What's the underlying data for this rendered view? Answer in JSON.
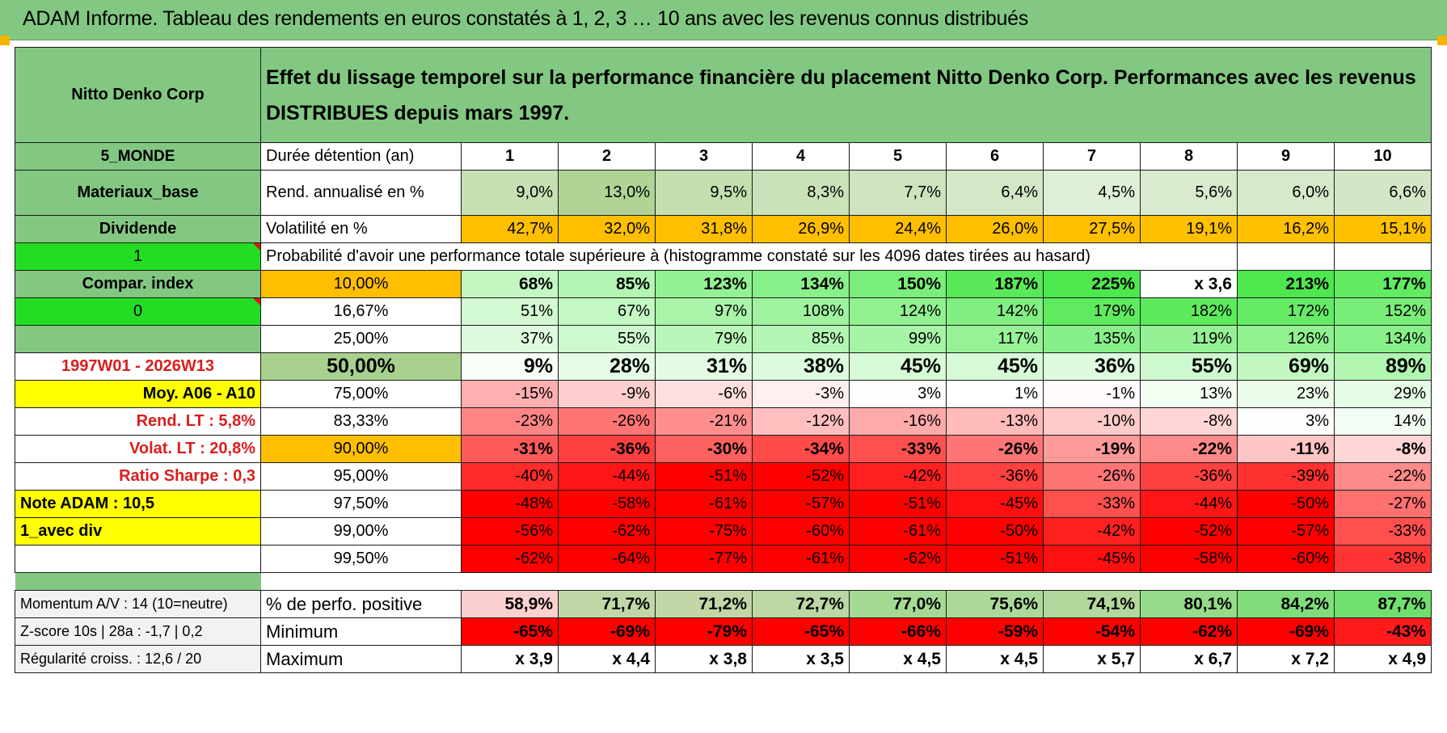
{
  "title": "ADAM Informe. Tableau des rendements en euros constatés à 1, 2, 3 … 10 ans avec les revenus connus distribués",
  "header": {
    "company": "Nitto Denko Corp",
    "description": "Effet du lissage temporel sur la performance financière du placement Nitto Denko Corp. Performances avec les revenus DISTRIBUES depuis mars 1997."
  },
  "rows": {
    "durations": {
      "label": "5_MONDE",
      "desc": "Durée détention (an)",
      "values": [
        "1",
        "2",
        "3",
        "4",
        "5",
        "6",
        "7",
        "8",
        "9",
        "10"
      ]
    },
    "returns": {
      "label": "Materiaux_base",
      "desc": "Rend. annualisé en %",
      "values": [
        "9,0%",
        "13,0%",
        "9,5%",
        "8,3%",
        "7,7%",
        "6,4%",
        "4,5%",
        "5,6%",
        "6,0%",
        "6,6%"
      ]
    },
    "volatility": {
      "label": "Dividende",
      "desc": "Volatilité en %",
      "values": [
        "42,7%",
        "32,0%",
        "31,8%",
        "26,9%",
        "24,4%",
        "26,0%",
        "27,5%",
        "19,1%",
        "16,2%",
        "15,1%"
      ]
    },
    "prob_header": {
      "label": "1",
      "text": "Probabilité d'avoir une performance totale supérieure à (histogramme constaté sur les 4096 dates tirées au hasard)"
    }
  },
  "quantiles": [
    {
      "label": "Compar. index",
      "q": "10,00%",
      "values": [
        "68%",
        "85%",
        "123%",
        "134%",
        "150%",
        "187%",
        "225%",
        "x 3,6",
        "213%",
        "177%"
      ]
    },
    {
      "label": "0",
      "q": "16,67%",
      "values": [
        "51%",
        "67%",
        "97%",
        "108%",
        "124%",
        "142%",
        "179%",
        "182%",
        "172%",
        "152%"
      ]
    },
    {
      "label": "",
      "q": "25,00%",
      "values": [
        "37%",
        "55%",
        "79%",
        "85%",
        "99%",
        "117%",
        "135%",
        "119%",
        "126%",
        "134%"
      ]
    },
    {
      "label": "1997W01 - 2026W13",
      "q": "50,00%",
      "values": [
        "9%",
        "28%",
        "31%",
        "38%",
        "45%",
        "45%",
        "36%",
        "55%",
        "69%",
        "89%"
      ]
    },
    {
      "label": "Moy. A06 - A10",
      "q": "75,00%",
      "values": [
        "-15%",
        "-9%",
        "-6%",
        "-3%",
        "3%",
        "1%",
        "-1%",
        "13%",
        "23%",
        "29%"
      ]
    },
    {
      "label": "Rend. LT :   5,8%",
      "q": "83,33%",
      "values": [
        "-23%",
        "-26%",
        "-21%",
        "-12%",
        "-16%",
        "-13%",
        "-10%",
        "-8%",
        "3%",
        "14%"
      ]
    },
    {
      "label": "Volat. LT :   20,8%",
      "q": "90,00%",
      "values": [
        "-31%",
        "-36%",
        "-30%",
        "-34%",
        "-33%",
        "-26%",
        "-19%",
        "-22%",
        "-11%",
        "-8%"
      ]
    },
    {
      "label": "Ratio Sharpe :    0,3",
      "q": "95,00%",
      "values": [
        "-40%",
        "-44%",
        "-51%",
        "-52%",
        "-42%",
        "-36%",
        "-26%",
        "-36%",
        "-39%",
        "-22%"
      ]
    },
    {
      "label": "Note ADAM : 10,5",
      "q": "97,50%",
      "values": [
        "-48%",
        "-58%",
        "-61%",
        "-57%",
        "-51%",
        "-45%",
        "-33%",
        "-44%",
        "-50%",
        "-27%"
      ]
    },
    {
      "label": "1_avec div",
      "q": "99,00%",
      "values": [
        "-56%",
        "-62%",
        "-75%",
        "-60%",
        "-61%",
        "-50%",
        "-42%",
        "-52%",
        "-57%",
        "-33%"
      ]
    },
    {
      "label": "",
      "q": "99,50%",
      "values": [
        "-62%",
        "-64%",
        "-77%",
        "-61%",
        "-62%",
        "-51%",
        "-45%",
        "-58%",
        "-60%",
        "-38%"
      ]
    }
  ],
  "bottom": [
    {
      "label": "Momentum A/V : 14 (10=neutre)",
      "desc": "% de perfo. positive",
      "values": [
        "58,9%",
        "71,7%",
        "71,2%",
        "72,7%",
        "77,0%",
        "75,6%",
        "74,1%",
        "80,1%",
        "84,2%",
        "87,7%"
      ]
    },
    {
      "label": "Z-score 10s | 28a : -1,7 | 0,2",
      "desc": "Minimum",
      "values": [
        "-65%",
        "-69%",
        "-79%",
        "-65%",
        "-66%",
        "-59%",
        "-54%",
        "-62%",
        "-69%",
        "-43%"
      ]
    },
    {
      "label": "Régularité croiss. : 12,6 / 20",
      "desc": "Maximum",
      "values": [
        "x 3,9",
        "x 4,4",
        "x 3,8",
        "x 3,5",
        "x 4,5",
        "x 4,5",
        "x 5,7",
        "x 6,7",
        "x 7,2",
        "x 4,9"
      ]
    }
  ],
  "colors": {
    "header_green": "#82c882",
    "bright_green": "#22dd22",
    "yellow": "#ffff00",
    "orange": "#ffbf00",
    "pale_green": "#c5e0b4"
  }
}
